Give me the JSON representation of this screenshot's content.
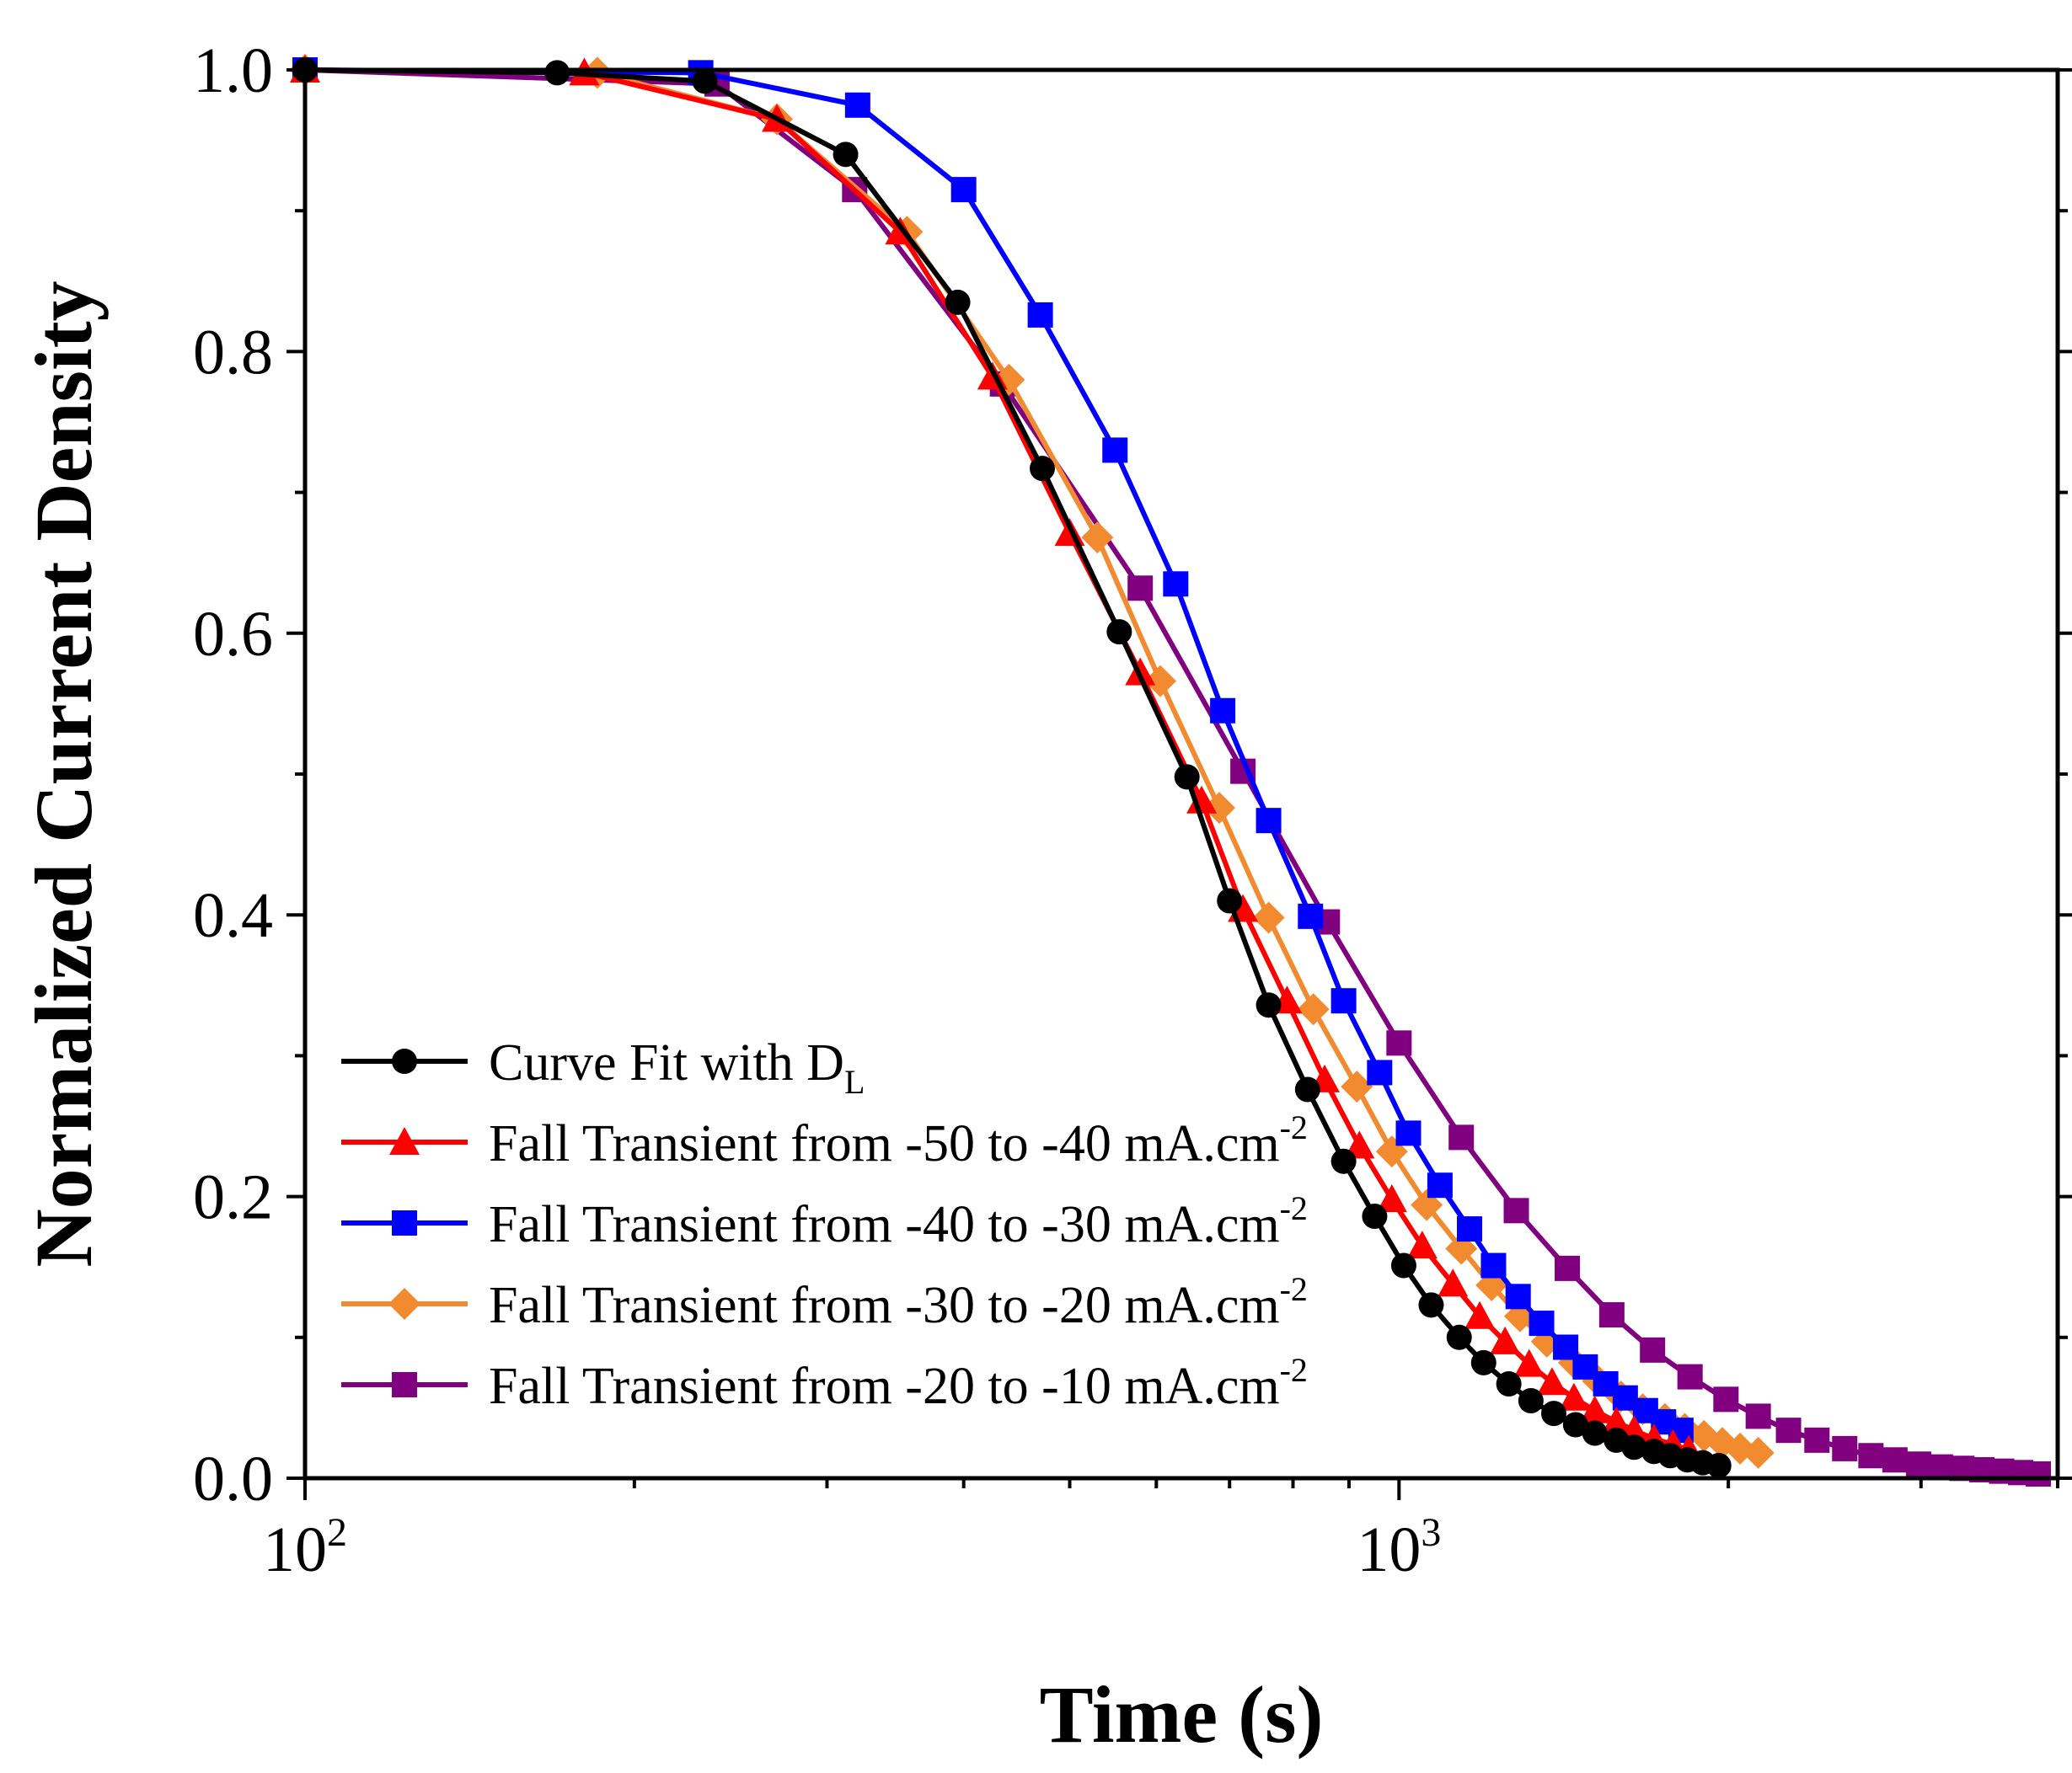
{
  "chart_data": {
    "type": "line",
    "title": "",
    "xlabel": "Time (s)",
    "ylabel": "Normalized Current Density",
    "xscale": "log",
    "xlim": [
      100,
      4000
    ],
    "ylim": [
      0,
      1.0
    ],
    "x_ticks": [
      {
        "value": 100,
        "base": "10",
        "exp": "2"
      },
      {
        "value": 1000,
        "base": "10",
        "exp": "3"
      }
    ],
    "y_ticks": [
      "0.0",
      "0.2",
      "0.4",
      "0.6",
      "0.8",
      "1.0"
    ],
    "legend_position": "bottom-left",
    "series": [
      {
        "name": "Curve Fit with D",
        "name_sub": "L",
        "name_sup": "",
        "color": "#000000",
        "marker": "circle",
        "x": [
          100,
          170,
          232,
          312,
          395,
          472,
          555,
          640,
          700,
          760,
          825,
          890,
          950,
          1010,
          1070,
          1135,
          1195,
          1260,
          1320,
          1385,
          1450,
          1510,
          1580,
          1640,
          1710,
          1770,
          1835,
          1895,
          1960
        ],
        "y": [
          1.0,
          0.998,
          0.992,
          0.94,
          0.835,
          0.717,
          0.601,
          0.498,
          0.41,
          0.336,
          0.276,
          0.225,
          0.186,
          0.151,
          0.123,
          0.1,
          0.082,
          0.067,
          0.055,
          0.046,
          0.038,
          0.032,
          0.027,
          0.022,
          0.019,
          0.016,
          0.013,
          0.011,
          0.009
        ]
      },
      {
        "name": "Fall Transient from -50 to -40 mA.cm",
        "name_sub": "",
        "name_sup": "-2",
        "color": "#ff0000",
        "marker": "triangle",
        "x": [
          100,
          180,
          270,
          350,
          425,
          500,
          580,
          660,
          720,
          790,
          855,
          920,
          985,
          1050,
          1120,
          1185,
          1250,
          1315,
          1380,
          1445,
          1510,
          1580,
          1640,
          1710,
          1780,
          1840
        ],
        "y": [
          1.0,
          0.998,
          0.965,
          0.885,
          0.782,
          0.671,
          0.572,
          0.481,
          0.404,
          0.339,
          0.283,
          0.236,
          0.198,
          0.165,
          0.138,
          0.115,
          0.097,
          0.081,
          0.068,
          0.057,
          0.048,
          0.04,
          0.034,
          0.028,
          0.024,
          0.02
        ]
      },
      {
        "name": "Fall Transient from -40 to -30 mA.cm",
        "name_sub": "",
        "name_sup": "-2",
        "color": "#0000ff",
        "marker": "square",
        "x": [
          100,
          230,
          320,
          400,
          470,
          550,
          625,
          690,
          760,
          830,
          890,
          960,
          1020,
          1090,
          1160,
          1220,
          1285,
          1350,
          1420,
          1480,
          1545,
          1610,
          1680,
          1745,
          1810
        ],
        "y": [
          1.0,
          0.998,
          0.975,
          0.915,
          0.826,
          0.73,
          0.635,
          0.545,
          0.467,
          0.399,
          0.339,
          0.288,
          0.245,
          0.208,
          0.177,
          0.151,
          0.129,
          0.11,
          0.093,
          0.079,
          0.067,
          0.057,
          0.048,
          0.04,
          0.034
        ]
      },
      {
        "name": "Fall Transient from -30 to -20 mA.cm",
        "name_sub": "",
        "name_sup": "-2",
        "color": "#f28a30",
        "marker": "diamond",
        "x": [
          100,
          185,
          270,
          355,
          440,
          530,
          605,
          685,
          760,
          835,
          915,
          985,
          1060,
          1140,
          1215,
          1290,
          1365,
          1445,
          1520,
          1595,
          1670,
          1750,
          1825,
          1900,
          1975,
          2050,
          2130
        ],
        "y": [
          1.0,
          0.998,
          0.965,
          0.885,
          0.78,
          0.668,
          0.566,
          0.476,
          0.398,
          0.333,
          0.278,
          0.232,
          0.194,
          0.163,
          0.137,
          0.115,
          0.097,
          0.082,
          0.069,
          0.058,
          0.049,
          0.042,
          0.035,
          0.03,
          0.025,
          0.021,
          0.018
        ]
      },
      {
        "name": "Fall Transient from -20 to -10 mA.cm",
        "name_sub": "",
        "name_sup": "-2",
        "color": "#800080",
        "marker": "square",
        "x": [
          100,
          238,
          318,
          434,
          580,
          720,
          860,
          1000,
          1140,
          1280,
          1425,
          1565,
          1705,
          1845,
          1990,
          2130,
          2270,
          2410,
          2555,
          2700,
          2840,
          2985,
          3125,
          3270,
          3410,
          3555,
          3700,
          3840
        ],
        "y": [
          1.0,
          0.99,
          0.915,
          0.777,
          0.632,
          0.502,
          0.395,
          0.309,
          0.242,
          0.19,
          0.149,
          0.116,
          0.091,
          0.072,
          0.056,
          0.044,
          0.034,
          0.027,
          0.021,
          0.016,
          0.013,
          0.01,
          0.008,
          0.007,
          0.006,
          0.005,
          0.004,
          0.003
        ]
      }
    ]
  }
}
